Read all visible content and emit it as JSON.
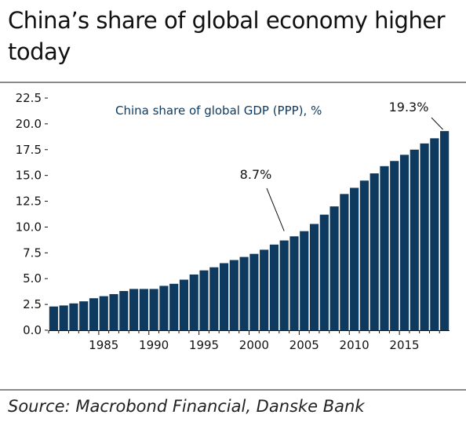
{
  "title": "China’s share of global economy higher today",
  "source": "Source: Macrobond Financial, Danske Bank",
  "colors": {
    "bar": "#0f3a60",
    "annotation_title": "#0f3a60",
    "rule": "#8a8a8a"
  },
  "chart_data": {
    "type": "bar",
    "title": "China share of global GDP (PPP), %",
    "xlabel": "",
    "ylabel": "",
    "ylim": [
      0,
      22.5
    ],
    "yticks": [
      "0.0",
      "2.5",
      "5.0",
      "7.5",
      "10.0",
      "12.5",
      "15.0",
      "17.5",
      "20.0",
      "22.5"
    ],
    "xticks": [
      "1985",
      "1990",
      "1995",
      "2000",
      "2005",
      "2010",
      "2015"
    ],
    "grid": false,
    "categories": [
      1980,
      1981,
      1982,
      1983,
      1984,
      1985,
      1986,
      1987,
      1988,
      1989,
      1990,
      1991,
      1992,
      1993,
      1994,
      1995,
      1996,
      1997,
      1998,
      1999,
      2000,
      2001,
      2002,
      2003,
      2004,
      2005,
      2006,
      2007,
      2008,
      2009,
      2010,
      2011,
      2012,
      2013,
      2014,
      2015,
      2016,
      2017,
      2018,
      2019
    ],
    "values": [
      2.3,
      2.4,
      2.6,
      2.8,
      3.1,
      3.3,
      3.5,
      3.8,
      4.0,
      4.0,
      4.0,
      4.3,
      4.5,
      4.9,
      5.4,
      5.8,
      6.1,
      6.5,
      6.8,
      7.1,
      7.4,
      7.8,
      8.3,
      8.7,
      9.1,
      9.6,
      10.3,
      11.2,
      12.0,
      13.2,
      13.8,
      14.5,
      15.2,
      15.9,
      16.4,
      17.0,
      17.5,
      18.1,
      18.6,
      19.3
    ],
    "annotations": [
      {
        "text": "8.7%",
        "year": 2003
      },
      {
        "text": "19.3%",
        "year": 2019
      }
    ]
  }
}
